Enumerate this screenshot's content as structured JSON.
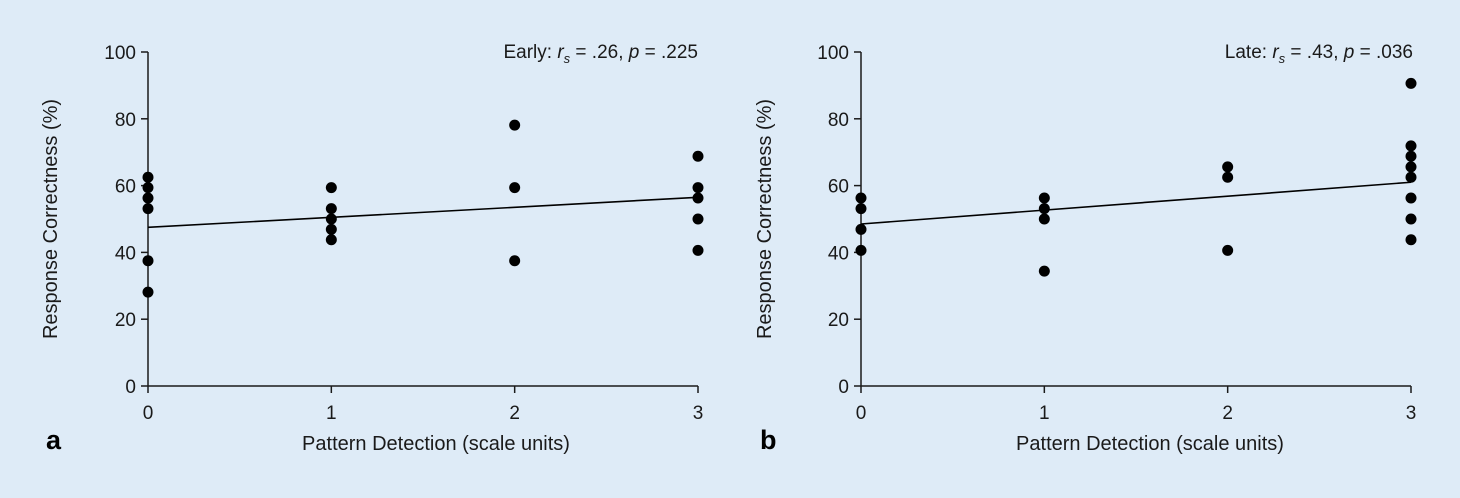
{
  "figure": {
    "background": "#deebf7",
    "marker_color": "#000000",
    "line_color": "#000000"
  },
  "chart_data": [
    {
      "type": "scatter",
      "panel_label": "a",
      "title": "",
      "annotation": {
        "prefix": "Early: ",
        "r": "r",
        "r_sub": "s",
        "r_value": " = .26, ",
        "p": "p",
        "p_value": " = .225"
      },
      "xlabel": "Pattern Detection (scale units)",
      "ylabel": "Response Correctness (%)",
      "xlim": [
        0,
        3
      ],
      "ylim": [
        0,
        100
      ],
      "xticks": [
        0,
        1,
        2,
        3
      ],
      "yticks": [
        0,
        20,
        40,
        60,
        80,
        100
      ],
      "points": [
        {
          "x": 0,
          "y": 62.5
        },
        {
          "x": 0,
          "y": 59.4
        },
        {
          "x": 0,
          "y": 56.3
        },
        {
          "x": 0,
          "y": 53.1
        },
        {
          "x": 0,
          "y": 37.5
        },
        {
          "x": 0,
          "y": 28.1
        },
        {
          "x": 1,
          "y": 59.4
        },
        {
          "x": 1,
          "y": 53.1
        },
        {
          "x": 1,
          "y": 50.0
        },
        {
          "x": 1,
          "y": 46.9
        },
        {
          "x": 1,
          "y": 43.8
        },
        {
          "x": 2,
          "y": 78.1
        },
        {
          "x": 2,
          "y": 59.4
        },
        {
          "x": 2,
          "y": 37.5
        },
        {
          "x": 3,
          "y": 68.8
        },
        {
          "x": 3,
          "y": 59.4
        },
        {
          "x": 3,
          "y": 56.3
        },
        {
          "x": 3,
          "y": 50.0
        },
        {
          "x": 3,
          "y": 40.6
        }
      ],
      "trendline": {
        "x": [
          0,
          3
        ],
        "y": [
          47.5,
          56.5
        ]
      },
      "grid": false,
      "legend": "none"
    },
    {
      "type": "scatter",
      "panel_label": "b",
      "title": "",
      "annotation": {
        "prefix": "Late: ",
        "r": "r",
        "r_sub": "s",
        "r_value": " = .43, ",
        "p": "p",
        "p_value": " = .036"
      },
      "xlabel": "Pattern Detection (scale units)",
      "ylabel": "Response Correctness (%)",
      "xlim": [
        0,
        3
      ],
      "ylim": [
        0,
        100
      ],
      "xticks": [
        0,
        1,
        2,
        3
      ],
      "yticks": [
        0,
        20,
        40,
        60,
        80,
        100
      ],
      "points": [
        {
          "x": 0,
          "y": 56.3
        },
        {
          "x": 0,
          "y": 53.1
        },
        {
          "x": 0,
          "y": 46.9
        },
        {
          "x": 0,
          "y": 40.6
        },
        {
          "x": 1,
          "y": 56.3
        },
        {
          "x": 1,
          "y": 53.1
        },
        {
          "x": 1,
          "y": 50.0
        },
        {
          "x": 1,
          "y": 34.4
        },
        {
          "x": 2,
          "y": 65.6
        },
        {
          "x": 2,
          "y": 62.5
        },
        {
          "x": 2,
          "y": 40.6
        },
        {
          "x": 3,
          "y": 90.6
        },
        {
          "x": 3,
          "y": 71.9
        },
        {
          "x": 3,
          "y": 68.8
        },
        {
          "x": 3,
          "y": 65.6
        },
        {
          "x": 3,
          "y": 62.5
        },
        {
          "x": 3,
          "y": 56.3
        },
        {
          "x": 3,
          "y": 50.0
        },
        {
          "x": 3,
          "y": 43.8
        }
      ],
      "trendline": {
        "x": [
          0,
          3
        ],
        "y": [
          48.5,
          61.0
        ]
      },
      "grid": false,
      "legend": "none"
    }
  ]
}
